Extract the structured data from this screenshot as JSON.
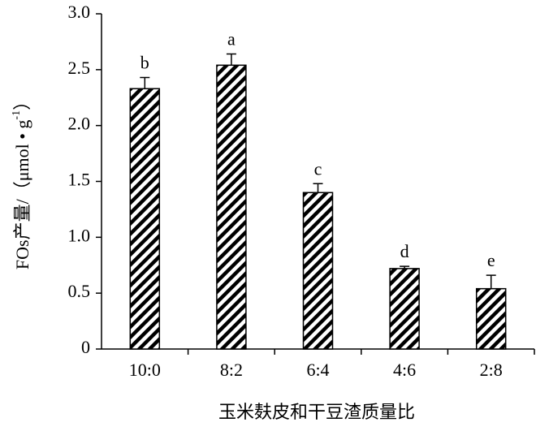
{
  "chart_data": {
    "type": "bar",
    "ylabel_parts": [
      "FOs产量/（μmol • g",
      "-1",
      "）"
    ],
    "xlabel": "玉米麸皮和干豆渣质量比",
    "categories": [
      "10:0",
      "8:2",
      "6:4",
      "4:6",
      "2:8"
    ],
    "values": [
      2.33,
      2.54,
      1.4,
      0.72,
      0.54
    ],
    "errors": [
      0.1,
      0.1,
      0.08,
      0.02,
      0.12
    ],
    "letters": [
      "b",
      "a",
      "c",
      "d",
      "e"
    ],
    "color": "#000000",
    "ylim": [
      0,
      3
    ],
    "yticks": [
      0,
      0.5,
      {
        "value": 1,
        "label": "1.0"
      },
      1.5,
      {
        "value": 2,
        "label": "2.0"
      },
      2.5,
      {
        "value": 3,
        "label": "3.0"
      }
    ],
    "grid": false
  }
}
